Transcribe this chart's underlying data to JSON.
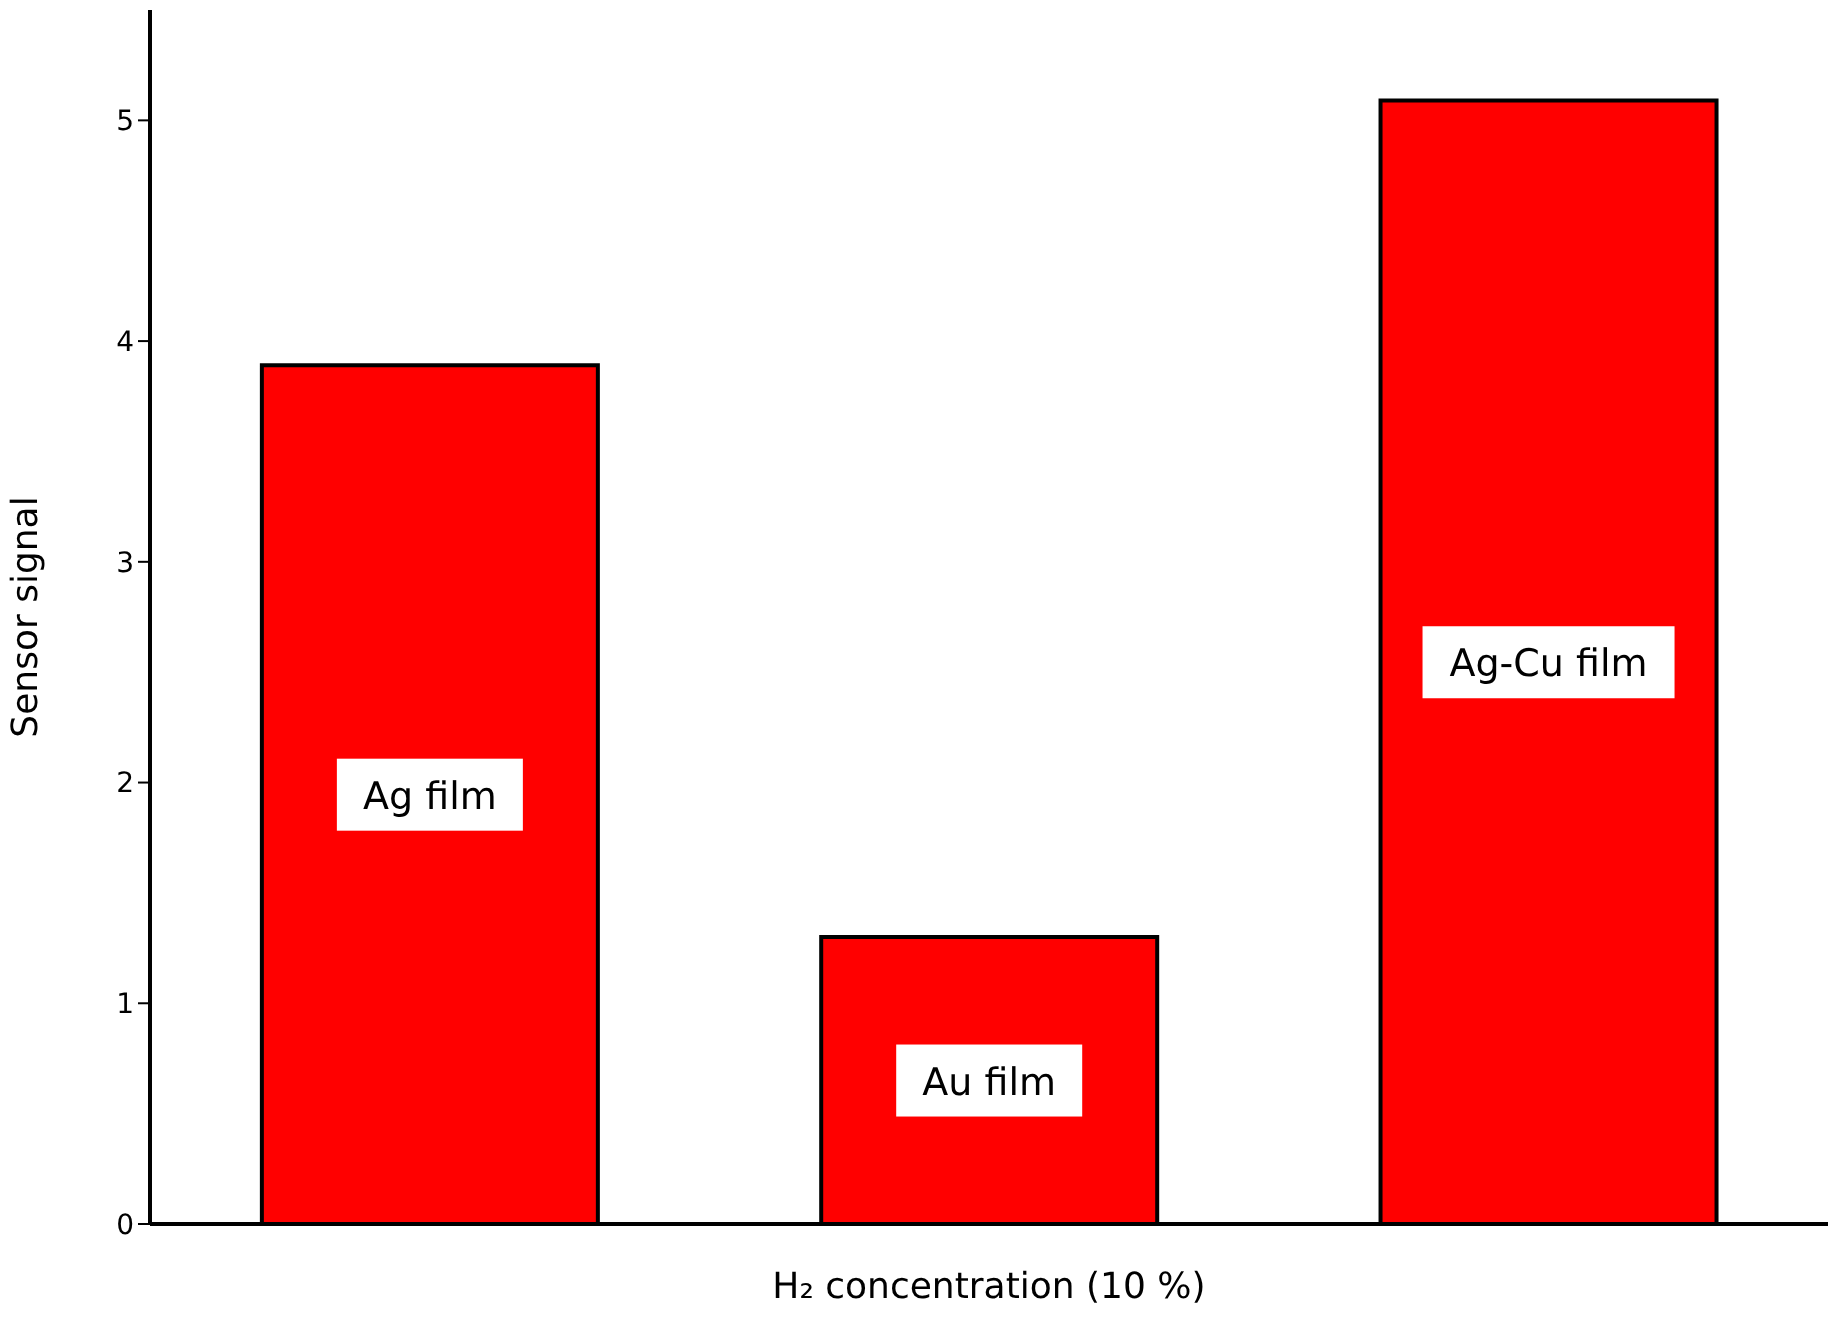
{
  "chart_data": {
    "type": "bar",
    "xlabel": "H₂ concentration (10 %)",
    "ylabel": "Sensor signal",
    "categories": [
      "Ag film",
      "Au film",
      "Ag-Cu film"
    ],
    "values": [
      3.89,
      1.3,
      5.09
    ],
    "color": "#ff0000",
    "ylim": [
      0,
      5.5
    ],
    "yticks": [
      0,
      1,
      2,
      3,
      4,
      5
    ],
    "grid": false
  }
}
